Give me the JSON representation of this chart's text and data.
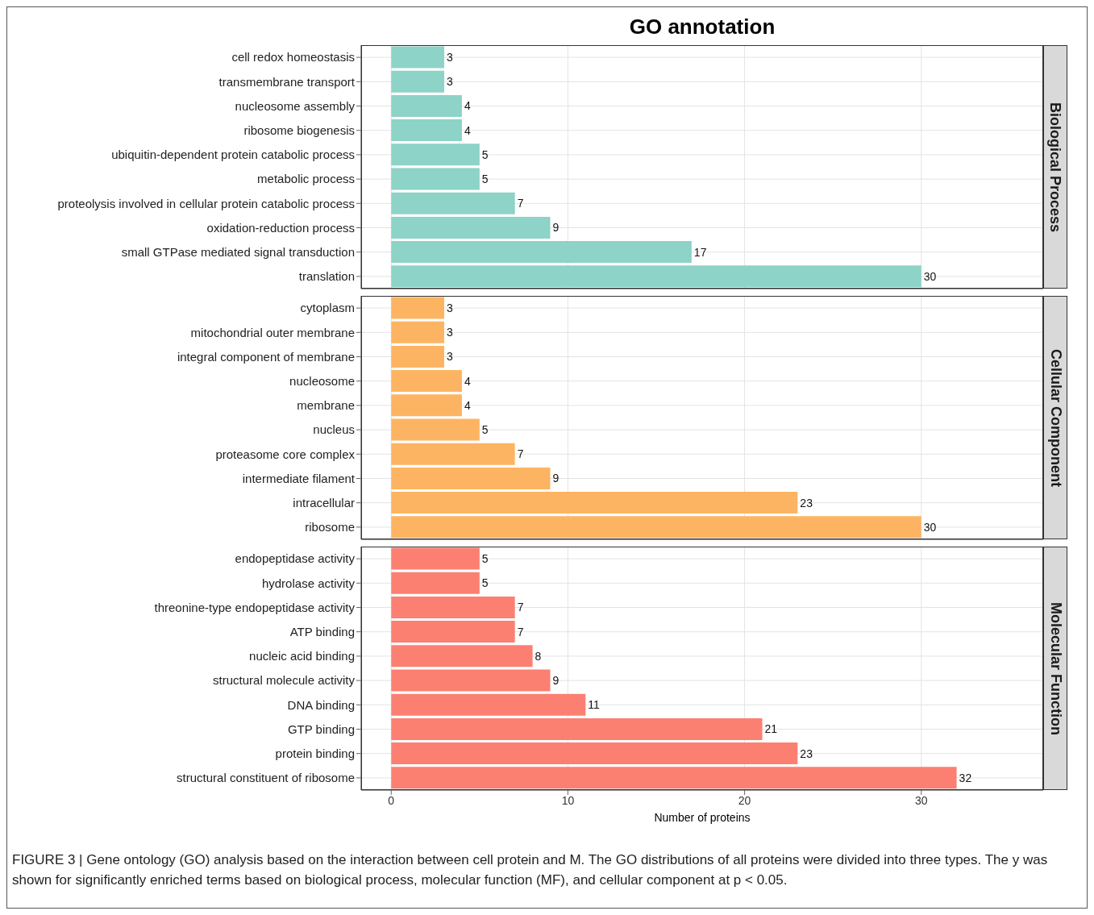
{
  "chart_data": [
    {
      "type": "bar",
      "orientation": "horizontal",
      "title": "GO annotation",
      "subtitle": "Biological Process",
      "categories": [
        "cell redox homeostasis",
        "transmembrane transport",
        "nucleosome assembly",
        "ribosome biogenesis",
        "ubiquitin-dependent protein catabolic process",
        "metabolic process",
        "proteolysis involved in cellular protein catabolic process",
        "oxidation-reduction process",
        "small GTPase mediated signal transduction",
        "translation"
      ],
      "values": [
        3,
        3,
        4,
        4,
        5,
        5,
        7,
        9,
        17,
        30
      ],
      "color": "#8dd3c7",
      "xlim": [
        -1.7,
        36.9
      ],
      "xticks": [
        0,
        10,
        20,
        30
      ],
      "grid": true,
      "data_labels": true,
      "tick_labels": "y"
    },
    {
      "type": "bar",
      "orientation": "horizontal",
      "subtitle": "Cellular Component",
      "categories": [
        "cytoplasm",
        "mitochondrial outer membrane",
        "integral component of membrane",
        "nucleosome",
        "membrane",
        "nucleus",
        "proteasome core complex",
        "intermediate filament",
        "intracellular",
        "ribosome"
      ],
      "values": [
        3,
        3,
        3,
        4,
        4,
        5,
        7,
        9,
        23,
        30
      ],
      "color": "#fdb462",
      "xlim": [
        -1.7,
        36.9
      ],
      "xticks": [
        0,
        10,
        20,
        30
      ],
      "grid": true,
      "data_labels": true,
      "tick_labels": "y"
    },
    {
      "type": "bar",
      "orientation": "horizontal",
      "subtitle": "Molecular Function",
      "xlabel": "Number of proteins",
      "categories": [
        "endopeptidase activity",
        "hydrolase activity",
        "threonine-type endopeptidase activity",
        "ATP binding",
        "nucleic acid binding",
        "structural molecule activity",
        "DNA binding",
        "GTP binding",
        "protein binding",
        "structural constituent of ribosome"
      ],
      "values": [
        5,
        5,
        7,
        7,
        8,
        9,
        11,
        21,
        23,
        32
      ],
      "color": "#fb8072",
      "xlim": [
        -1.7,
        36.9
      ],
      "xticks": [
        0,
        10,
        20,
        30
      ],
      "grid": true,
      "data_labels": true,
      "annotations": [
        "FIGURE 3 | Gene ontology (GO) analysis based on the interaction between cell protein and M. The GO distributions of all proteins were divided into three types. The y was shown for significantly enriched terms based on biological process, molecular function (MF), and cellular component at p < 0.05."
      ]
    }
  ]
}
